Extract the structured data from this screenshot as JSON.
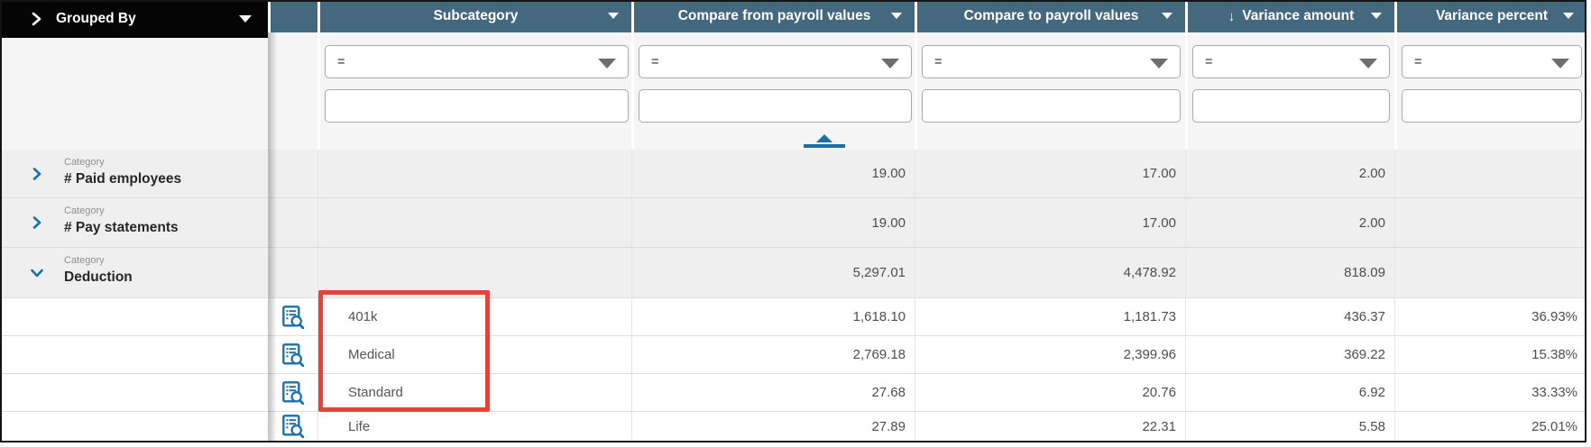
{
  "grouped_by_bar": {
    "label": "Grouped By"
  },
  "columns": [
    {
      "label": "Subcategory",
      "filter_operator": "=",
      "filter_value": ""
    },
    {
      "label": "Compare from payroll values",
      "filter_operator": "=",
      "filter_value": "",
      "sort_position_indicator": true
    },
    {
      "label": "Compare to payroll values",
      "filter_operator": "=",
      "filter_value": ""
    },
    {
      "label": "Variance amount",
      "filter_operator": "=",
      "filter_value": "",
      "sort_direction": "↓"
    },
    {
      "label": "Variance percent",
      "filter_operator": "=",
      "filter_value": ""
    }
  ],
  "rows": [
    {
      "type": "group",
      "category_tag": "Category",
      "category": "# Paid employees",
      "expanded": false,
      "compare_from": "19.00",
      "compare_to": "17.00",
      "variance_amount": "2.00",
      "variance_percent": ""
    },
    {
      "type": "group",
      "category_tag": "Category",
      "category": "# Pay statements",
      "expanded": false,
      "compare_from": "19.00",
      "compare_to": "17.00",
      "variance_amount": "2.00",
      "variance_percent": ""
    },
    {
      "type": "group",
      "category_tag": "Category",
      "category": "Deduction",
      "expanded": true,
      "compare_from": "5,297.01",
      "compare_to": "4,478.92",
      "variance_amount": "818.09",
      "variance_percent": ""
    },
    {
      "type": "detail",
      "subcategory": "401k",
      "highlighted": true,
      "compare_from": "1,618.10",
      "compare_to": "1,181.73",
      "variance_amount": "436.37",
      "variance_percent": "36.93%"
    },
    {
      "type": "detail",
      "subcategory": "Medical",
      "highlighted": true,
      "compare_from": "2,769.18",
      "compare_to": "2,399.96",
      "variance_amount": "369.22",
      "variance_percent": "15.38%"
    },
    {
      "type": "detail",
      "subcategory": "Standard",
      "highlighted": true,
      "compare_from": "27.68",
      "compare_to": "20.76",
      "variance_amount": "6.92",
      "variance_percent": "33.33%"
    },
    {
      "type": "detail",
      "subcategory": "Life",
      "highlighted": false,
      "compare_from": "27.89",
      "compare_to": "22.31",
      "variance_amount": "5.58",
      "variance_percent": "25.01%"
    }
  ],
  "colors": {
    "header_bg": "#44687E",
    "grouped_by_bg": "#050505",
    "accent_blue": "#1B6FAD",
    "sort_indicator_blue": "#1C6EA4",
    "highlight_red": "#E8413A",
    "group_row_bg": "#EFEFEF",
    "filter_zone_bg": "#F5F5F5"
  }
}
